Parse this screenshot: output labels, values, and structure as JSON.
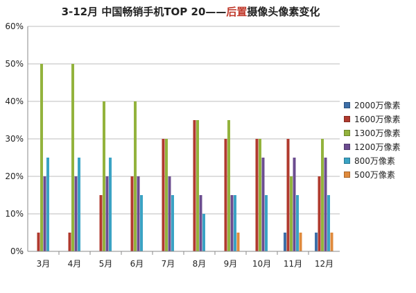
{
  "chart_data": {
    "type": "bar",
    "title_pre": "3-12月 中国畅销手机TOP 20——",
    "title_highlight": "后置",
    "title_post": "摄像头像素变化",
    "categories": [
      "3月",
      "4月",
      "5月",
      "6月",
      "7月",
      "8月",
      "9月",
      "10月",
      "11月",
      "12月"
    ],
    "ylim": [
      0,
      60
    ],
    "yticks": [
      "0%",
      "10%",
      "20%",
      "30%",
      "40%",
      "50%",
      "60%"
    ],
    "y_unit": "%",
    "legend_position": "right",
    "grid": true,
    "series": [
      {
        "name": "2000万像素",
        "color": "#3d6fa8",
        "values": [
          0,
          0,
          0,
          0,
          0,
          0,
          0,
          0,
          5,
          5
        ]
      },
      {
        "name": "1600万像素",
        "color": "#b03a2e",
        "values": [
          5,
          5,
          15,
          20,
          30,
          35,
          30,
          30,
          30,
          20
        ]
      },
      {
        "name": "1300万像素",
        "color": "#93b33d",
        "values": [
          50,
          50,
          40,
          40,
          30,
          35,
          35,
          30,
          20,
          30
        ]
      },
      {
        "name": "1200万像素",
        "color": "#6b4c8f",
        "values": [
          20,
          20,
          20,
          20,
          20,
          15,
          15,
          25,
          25,
          25
        ]
      },
      {
        "name": "800万像素",
        "color": "#3aa3c4",
        "values": [
          25,
          25,
          25,
          15,
          15,
          10,
          15,
          15,
          15,
          15
        ]
      },
      {
        "name": "500万像素",
        "color": "#e08a3c",
        "values": [
          0,
          0,
          0,
          0,
          0,
          0,
          5,
          0,
          5,
          5
        ]
      }
    ]
  }
}
